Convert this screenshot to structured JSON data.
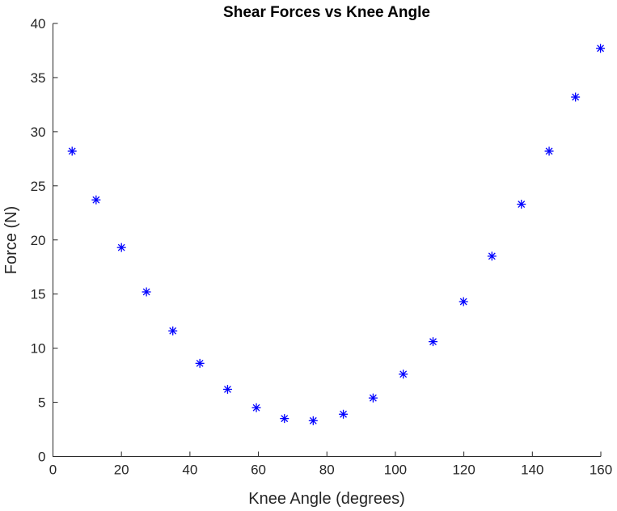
{
  "chart_data": {
    "type": "scatter",
    "title": "Shear Forces vs Knee Angle",
    "xlabel": "Knee Angle (degrees)",
    "ylabel": "Force (N)",
    "xlim": [
      0,
      160
    ],
    "ylim": [
      0,
      40
    ],
    "xticks": [
      0,
      20,
      40,
      60,
      80,
      100,
      120,
      140,
      160
    ],
    "yticks": [
      0,
      5,
      10,
      15,
      20,
      25,
      30,
      35,
      40
    ],
    "grid": false,
    "marker": "asterisk",
    "color": "#0000ff",
    "series": [
      {
        "x": [
          5.6,
          12.6,
          20.0,
          27.3,
          35.0,
          42.9,
          51.0,
          59.4,
          67.6,
          76.0,
          84.8,
          93.5,
          102.3,
          111.0,
          119.9,
          128.2,
          136.8,
          144.9,
          152.6,
          159.9
        ],
        "y": [
          28.2,
          23.7,
          19.3,
          15.2,
          11.6,
          8.6,
          6.2,
          4.5,
          3.5,
          3.3,
          3.9,
          5.4,
          7.6,
          10.6,
          14.3,
          18.5,
          23.3,
          28.2,
          33.2,
          37.7
        ]
      }
    ]
  }
}
